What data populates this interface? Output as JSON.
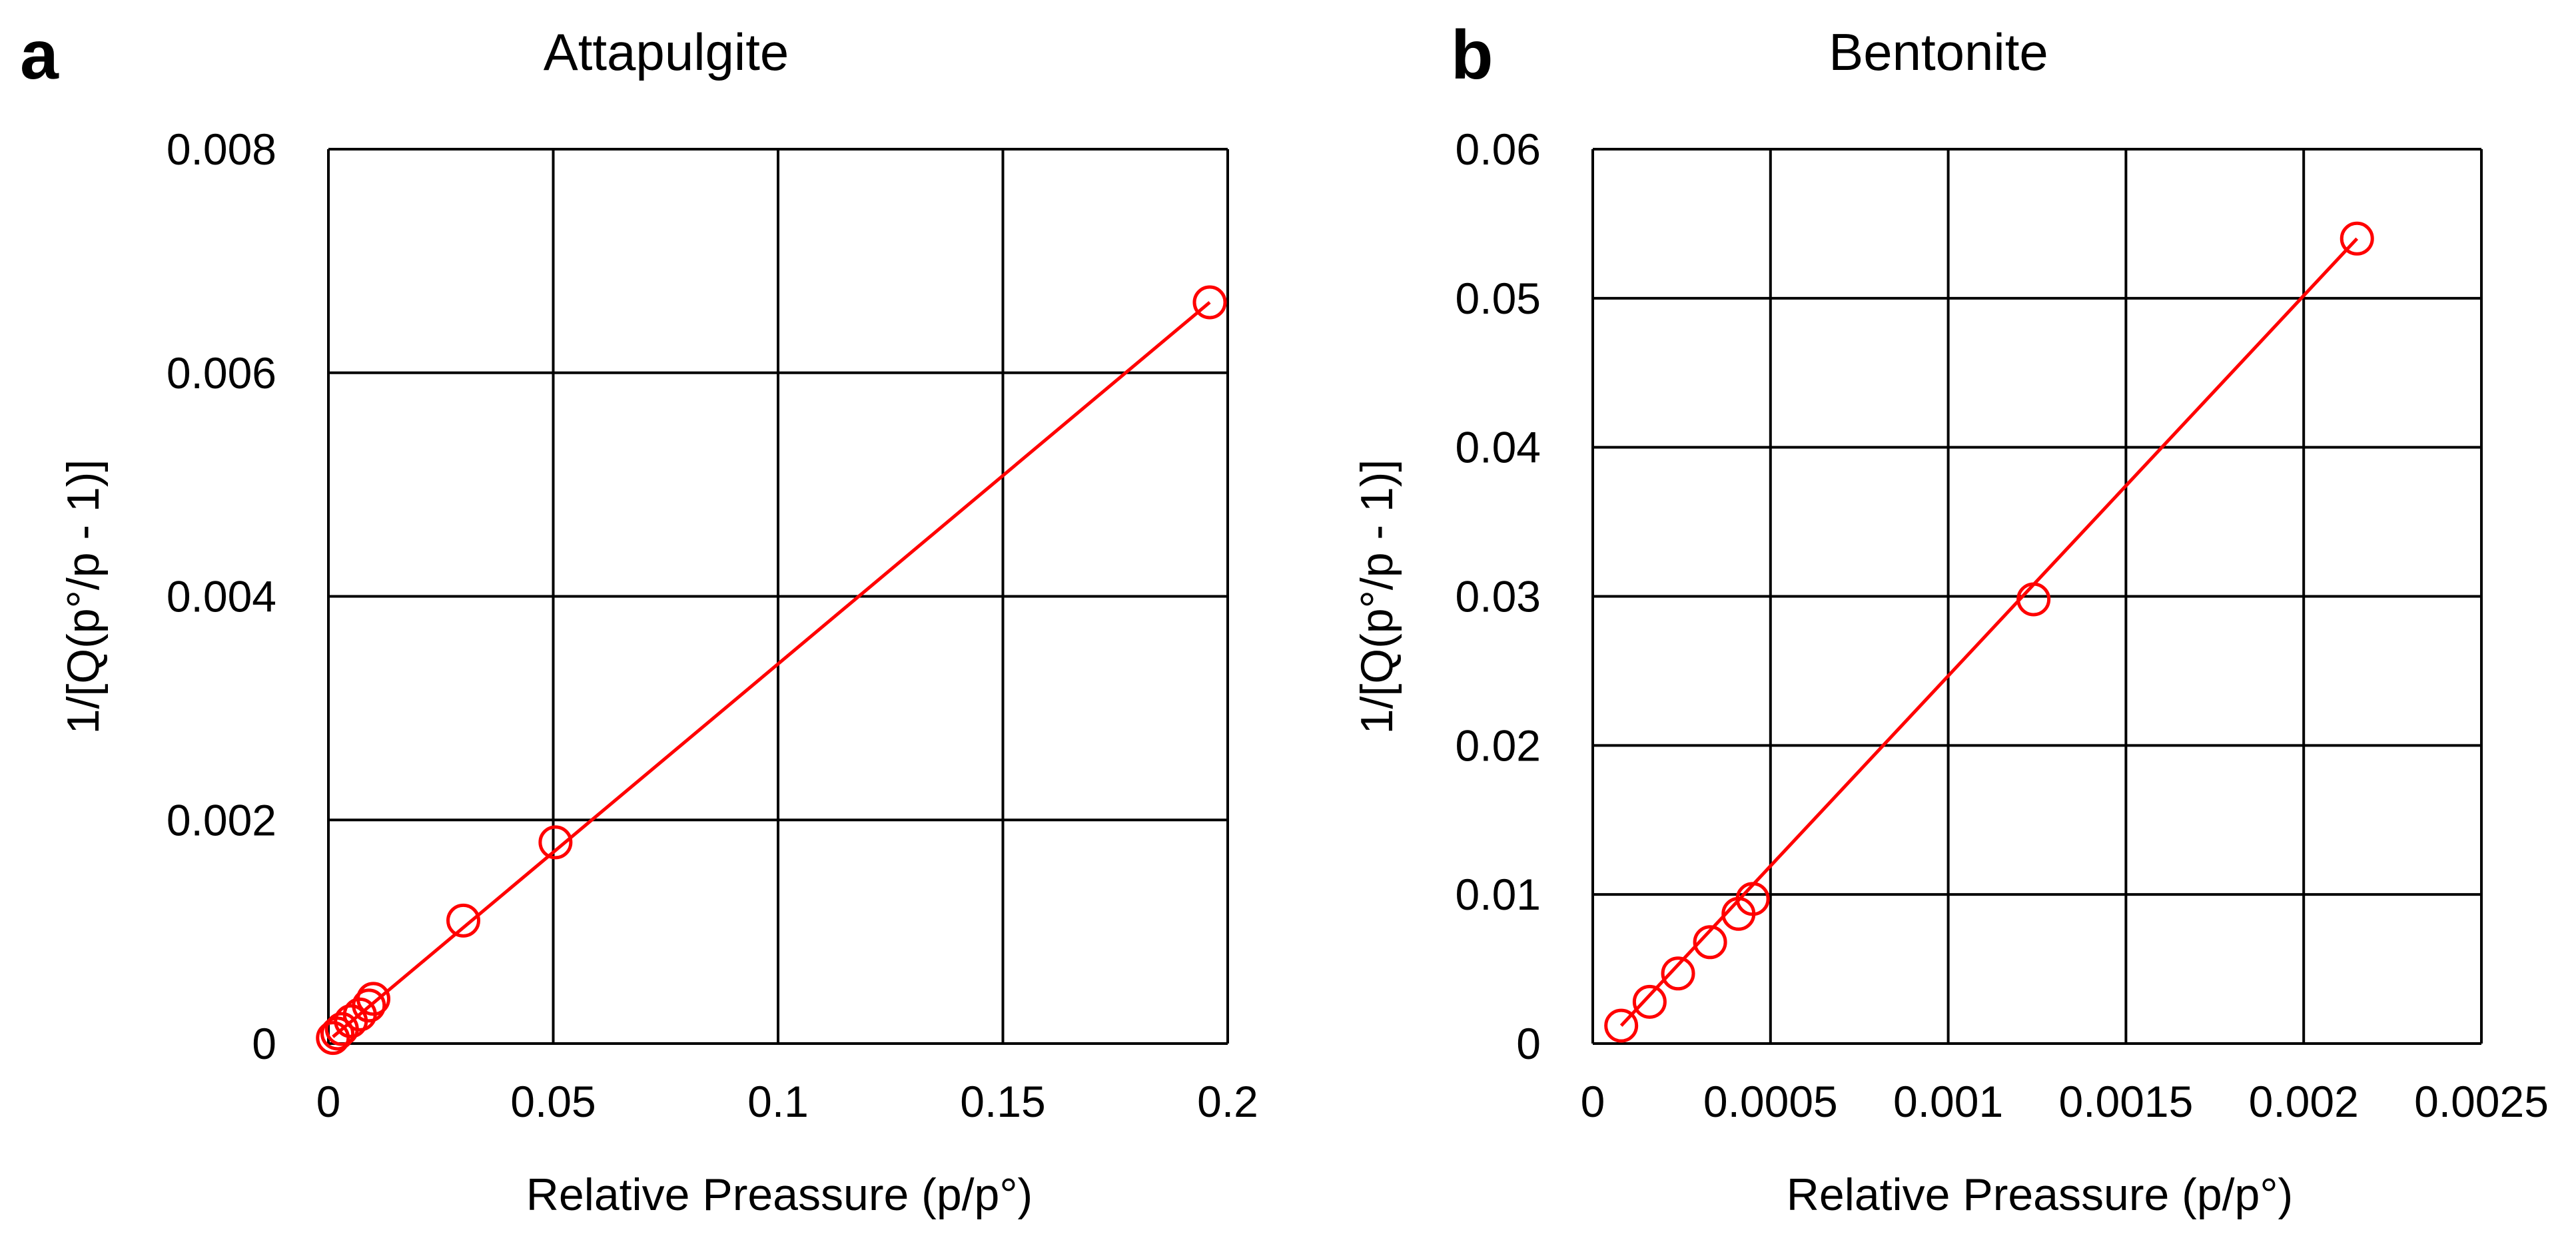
{
  "chart_data": [
    {
      "panel": "a",
      "type": "scatter",
      "title": "Attapulgite",
      "xlabel": "Relative Preassure (p/p°)",
      "ylabel": "1/[Q(p°/p - 1)]",
      "xlim": [
        0,
        0.2
      ],
      "ylim": [
        0,
        0.008
      ],
      "xticks": [
        0,
        0.05,
        0.1,
        0.15,
        0.2
      ],
      "xtick_labels": [
        "0",
        "0.05",
        "0.1",
        "0.15",
        "0.2"
      ],
      "yticks": [
        0,
        0.002,
        0.004,
        0.006,
        0.008
      ],
      "ytick_labels": [
        "0",
        "0.002",
        "0.004",
        "0.006",
        "0.008"
      ],
      "grid": true,
      "marker": "open-circle",
      "color": "#ff0000",
      "points": [
        {
          "x": 0.001,
          "y": 5e-05
        },
        {
          "x": 0.002,
          "y": 9e-05
        },
        {
          "x": 0.003,
          "y": 0.00013
        },
        {
          "x": 0.005,
          "y": 0.0002
        },
        {
          "x": 0.007,
          "y": 0.00026
        },
        {
          "x": 0.009,
          "y": 0.00034
        },
        {
          "x": 0.01,
          "y": 0.0004
        },
        {
          "x": 0.03,
          "y": 0.0011
        },
        {
          "x": 0.0505,
          "y": 0.0018
        },
        {
          "x": 0.196,
          "y": 0.00663
        }
      ],
      "fit_line": {
        "x": [
          0.001,
          0.196
        ],
        "y": [
          6e-05,
          0.00663
        ]
      }
    },
    {
      "panel": "b",
      "type": "scatter",
      "title": "Bentonite",
      "xlabel": "Relative Preassure (p/p°)",
      "ylabel": "1/[Q(p°/p - 1)]",
      "xlim": [
        0,
        0.0025
      ],
      "ylim": [
        0,
        0.06
      ],
      "xticks": [
        0,
        0.0005,
        0.001,
        0.0015,
        0.002,
        0.0025
      ],
      "xtick_labels": [
        "0",
        "0.0005",
        "0.001",
        "0.0015",
        "0.002",
        "0.0025"
      ],
      "yticks": [
        0,
        0.01,
        0.02,
        0.03,
        0.04,
        0.05,
        0.06
      ],
      "ytick_labels": [
        "0",
        "0.01",
        "0.02",
        "0.03",
        "0.04",
        "0.05",
        "0.06"
      ],
      "grid": true,
      "marker": "open-circle",
      "color": "#ff0000",
      "points": [
        {
          "x": 8e-05,
          "y": 0.0012
        },
        {
          "x": 0.00016,
          "y": 0.0028
        },
        {
          "x": 0.00024,
          "y": 0.0047
        },
        {
          "x": 0.00033,
          "y": 0.0068
        },
        {
          "x": 0.00041,
          "y": 0.0087
        },
        {
          "x": 0.00045,
          "y": 0.0097
        },
        {
          "x": 0.00124,
          "y": 0.0298
        },
        {
          "x": 0.00215,
          "y": 0.054
        }
      ],
      "fit_line": {
        "x": [
          8e-05,
          0.00215
        ],
        "y": [
          0.0012,
          0.054
        ]
      }
    }
  ]
}
